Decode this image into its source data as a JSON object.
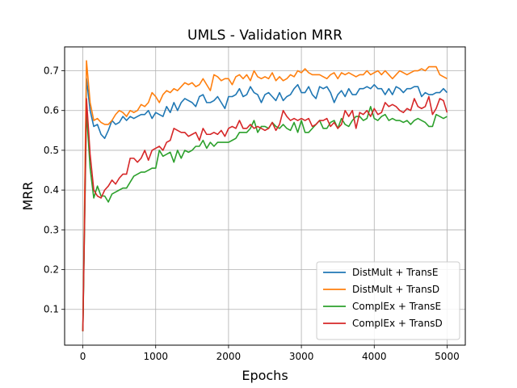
{
  "chart_data": {
    "type": "line",
    "title": "UMLS - Validation MRR",
    "xlabel": "Epochs",
    "ylabel": "MRR",
    "xlim": [
      -250,
      5250
    ],
    "ylim": [
      0.01,
      0.76
    ],
    "xticks": [
      0,
      1000,
      2000,
      3000,
      4000,
      5000
    ],
    "yticks": [
      0.1,
      0.2,
      0.3,
      0.4,
      0.5,
      0.6,
      0.7
    ],
    "grid": true,
    "legend_position": "lower-right",
    "x": [
      0,
      50,
      100,
      150,
      200,
      250,
      300,
      350,
      400,
      450,
      500,
      550,
      600,
      650,
      700,
      750,
      800,
      850,
      900,
      950,
      1000,
      1050,
      1100,
      1150,
      1200,
      1250,
      1300,
      1350,
      1400,
      1450,
      1500,
      1550,
      1600,
      1650,
      1700,
      1750,
      1800,
      1850,
      1900,
      1950,
      2000,
      2050,
      2100,
      2150,
      2200,
      2250,
      2300,
      2350,
      2400,
      2450,
      2500,
      2550,
      2600,
      2650,
      2700,
      2750,
      2800,
      2850,
      2900,
      2950,
      3000,
      3050,
      3100,
      3150,
      3200,
      3250,
      3300,
      3350,
      3400,
      3450,
      3500,
      3550,
      3600,
      3650,
      3700,
      3750,
      3800,
      3850,
      3900,
      3950,
      4000,
      4050,
      4100,
      4150,
      4200,
      4250,
      4300,
      4350,
      4400,
      4450,
      4500,
      4550,
      4600,
      4650,
      4700,
      4750,
      4800,
      4850,
      4900,
      4950,
      5000
    ],
    "series": [
      {
        "name": "DistMult + TransE",
        "color": "#1f77b4",
        "values": [
          0.045,
          0.68,
          0.6,
          0.56,
          0.565,
          0.54,
          0.53,
          0.55,
          0.575,
          0.565,
          0.57,
          0.585,
          0.575,
          0.585,
          0.58,
          0.585,
          0.59,
          0.59,
          0.6,
          0.58,
          0.595,
          0.59,
          0.585,
          0.61,
          0.595,
          0.62,
          0.6,
          0.62,
          0.63,
          0.625,
          0.62,
          0.61,
          0.635,
          0.64,
          0.62,
          0.62,
          0.625,
          0.635,
          0.62,
          0.605,
          0.635,
          0.635,
          0.64,
          0.655,
          0.635,
          0.64,
          0.66,
          0.645,
          0.64,
          0.62,
          0.64,
          0.645,
          0.635,
          0.625,
          0.645,
          0.625,
          0.635,
          0.64,
          0.655,
          0.665,
          0.645,
          0.645,
          0.66,
          0.64,
          0.63,
          0.66,
          0.655,
          0.66,
          0.645,
          0.62,
          0.64,
          0.65,
          0.635,
          0.655,
          0.64,
          0.64,
          0.655,
          0.655,
          0.66,
          0.655,
          0.665,
          0.655,
          0.655,
          0.64,
          0.655,
          0.64,
          0.66,
          0.655,
          0.645,
          0.655,
          0.655,
          0.66,
          0.66,
          0.635,
          0.645,
          0.64,
          0.64,
          0.645,
          0.645,
          0.655,
          0.645
        ]
      },
      {
        "name": "DistMult + TransD",
        "color": "#ff7f0e",
        "values": [
          0.045,
          0.725,
          0.62,
          0.575,
          0.58,
          0.57,
          0.565,
          0.565,
          0.575,
          0.59,
          0.6,
          0.595,
          0.585,
          0.6,
          0.595,
          0.6,
          0.615,
          0.61,
          0.62,
          0.645,
          0.635,
          0.62,
          0.64,
          0.65,
          0.645,
          0.655,
          0.65,
          0.66,
          0.67,
          0.665,
          0.67,
          0.66,
          0.665,
          0.68,
          0.665,
          0.65,
          0.69,
          0.685,
          0.675,
          0.68,
          0.68,
          0.665,
          0.685,
          0.69,
          0.68,
          0.69,
          0.675,
          0.7,
          0.685,
          0.68,
          0.685,
          0.68,
          0.695,
          0.675,
          0.685,
          0.675,
          0.68,
          0.69,
          0.685,
          0.7,
          0.695,
          0.705,
          0.695,
          0.69,
          0.69,
          0.69,
          0.685,
          0.68,
          0.69,
          0.695,
          0.68,
          0.695,
          0.69,
          0.695,
          0.69,
          0.685,
          0.69,
          0.69,
          0.7,
          0.69,
          0.695,
          0.7,
          0.69,
          0.7,
          0.69,
          0.68,
          0.69,
          0.7,
          0.695,
          0.69,
          0.695,
          0.7,
          0.7,
          0.705,
          0.7,
          0.71,
          0.71,
          0.71,
          0.69,
          0.685,
          0.68
        ]
      },
      {
        "name": "ComplEx + TransE",
        "color": "#2ca02c",
        "values": [
          0.045,
          0.6,
          0.455,
          0.38,
          0.41,
          0.385,
          0.385,
          0.37,
          0.39,
          0.395,
          0.4,
          0.405,
          0.405,
          0.42,
          0.435,
          0.44,
          0.445,
          0.445,
          0.45,
          0.455,
          0.455,
          0.5,
          0.485,
          0.49,
          0.495,
          0.47,
          0.5,
          0.48,
          0.5,
          0.495,
          0.5,
          0.51,
          0.51,
          0.525,
          0.505,
          0.52,
          0.51,
          0.52,
          0.52,
          0.52,
          0.52,
          0.525,
          0.53,
          0.545,
          0.545,
          0.545,
          0.555,
          0.575,
          0.545,
          0.56,
          0.56,
          0.555,
          0.57,
          0.56,
          0.555,
          0.565,
          0.555,
          0.55,
          0.57,
          0.545,
          0.575,
          0.545,
          0.545,
          0.555,
          0.565,
          0.575,
          0.555,
          0.555,
          0.57,
          0.575,
          0.555,
          0.58,
          0.565,
          0.56,
          0.575,
          0.585,
          0.585,
          0.575,
          0.58,
          0.61,
          0.58,
          0.575,
          0.585,
          0.59,
          0.575,
          0.58,
          0.575,
          0.575,
          0.57,
          0.575,
          0.565,
          0.575,
          0.58,
          0.575,
          0.57,
          0.56,
          0.56,
          0.59,
          0.585,
          0.58,
          0.585
        ]
      },
      {
        "name": "ComplEx + TransD",
        "color": "#d62728",
        "values": [
          0.045,
          0.63,
          0.49,
          0.4,
          0.385,
          0.38,
          0.4,
          0.41,
          0.425,
          0.415,
          0.43,
          0.44,
          0.44,
          0.48,
          0.48,
          0.47,
          0.48,
          0.5,
          0.475,
          0.5,
          0.505,
          0.51,
          0.5,
          0.52,
          0.525,
          0.555,
          0.55,
          0.545,
          0.545,
          0.535,
          0.54,
          0.545,
          0.525,
          0.555,
          0.54,
          0.54,
          0.545,
          0.54,
          0.55,
          0.535,
          0.555,
          0.56,
          0.555,
          0.575,
          0.555,
          0.555,
          0.565,
          0.555,
          0.56,
          0.555,
          0.55,
          0.555,
          0.57,
          0.55,
          0.565,
          0.6,
          0.585,
          0.575,
          0.58,
          0.575,
          0.58,
          0.575,
          0.58,
          0.56,
          0.565,
          0.575,
          0.575,
          0.58,
          0.56,
          0.57,
          0.555,
          0.565,
          0.6,
          0.585,
          0.6,
          0.555,
          0.595,
          0.59,
          0.6,
          0.585,
          0.605,
          0.59,
          0.595,
          0.62,
          0.61,
          0.615,
          0.61,
          0.6,
          0.595,
          0.605,
          0.6,
          0.63,
          0.61,
          0.605,
          0.61,
          0.635,
          0.59,
          0.605,
          0.63,
          0.625,
          0.595
        ]
      }
    ]
  }
}
